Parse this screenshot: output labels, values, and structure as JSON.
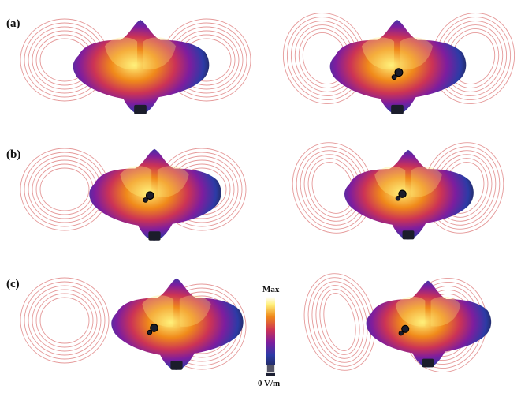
{
  "figure": {
    "row_labels": [
      "(a)",
      "(b)",
      "(c)"
    ],
    "colorbar": {
      "max_label": "Max",
      "min_label": "0 V/m"
    },
    "colors": {
      "coil": "#e59999",
      "head_dark": "#1b1d2b",
      "head_blue": "#2c3ba6",
      "head_purple": "#7e1d9e",
      "head_red": "#cc3355",
      "head_orange": "#f08a1a",
      "head_yellow": "#fff07a"
    },
    "panels": [
      {
        "row": "a",
        "coil": "figure-8 flat"
      },
      {
        "row": "a",
        "coil": "figure-8 tilted"
      },
      {
        "row": "b",
        "coil": "figure-8 flat"
      },
      {
        "row": "b",
        "coil": "figure-8 tilted"
      },
      {
        "row": "c",
        "coil": "figure-8 flat"
      },
      {
        "row": "c",
        "coil": "figure-8 tilted"
      }
    ]
  }
}
